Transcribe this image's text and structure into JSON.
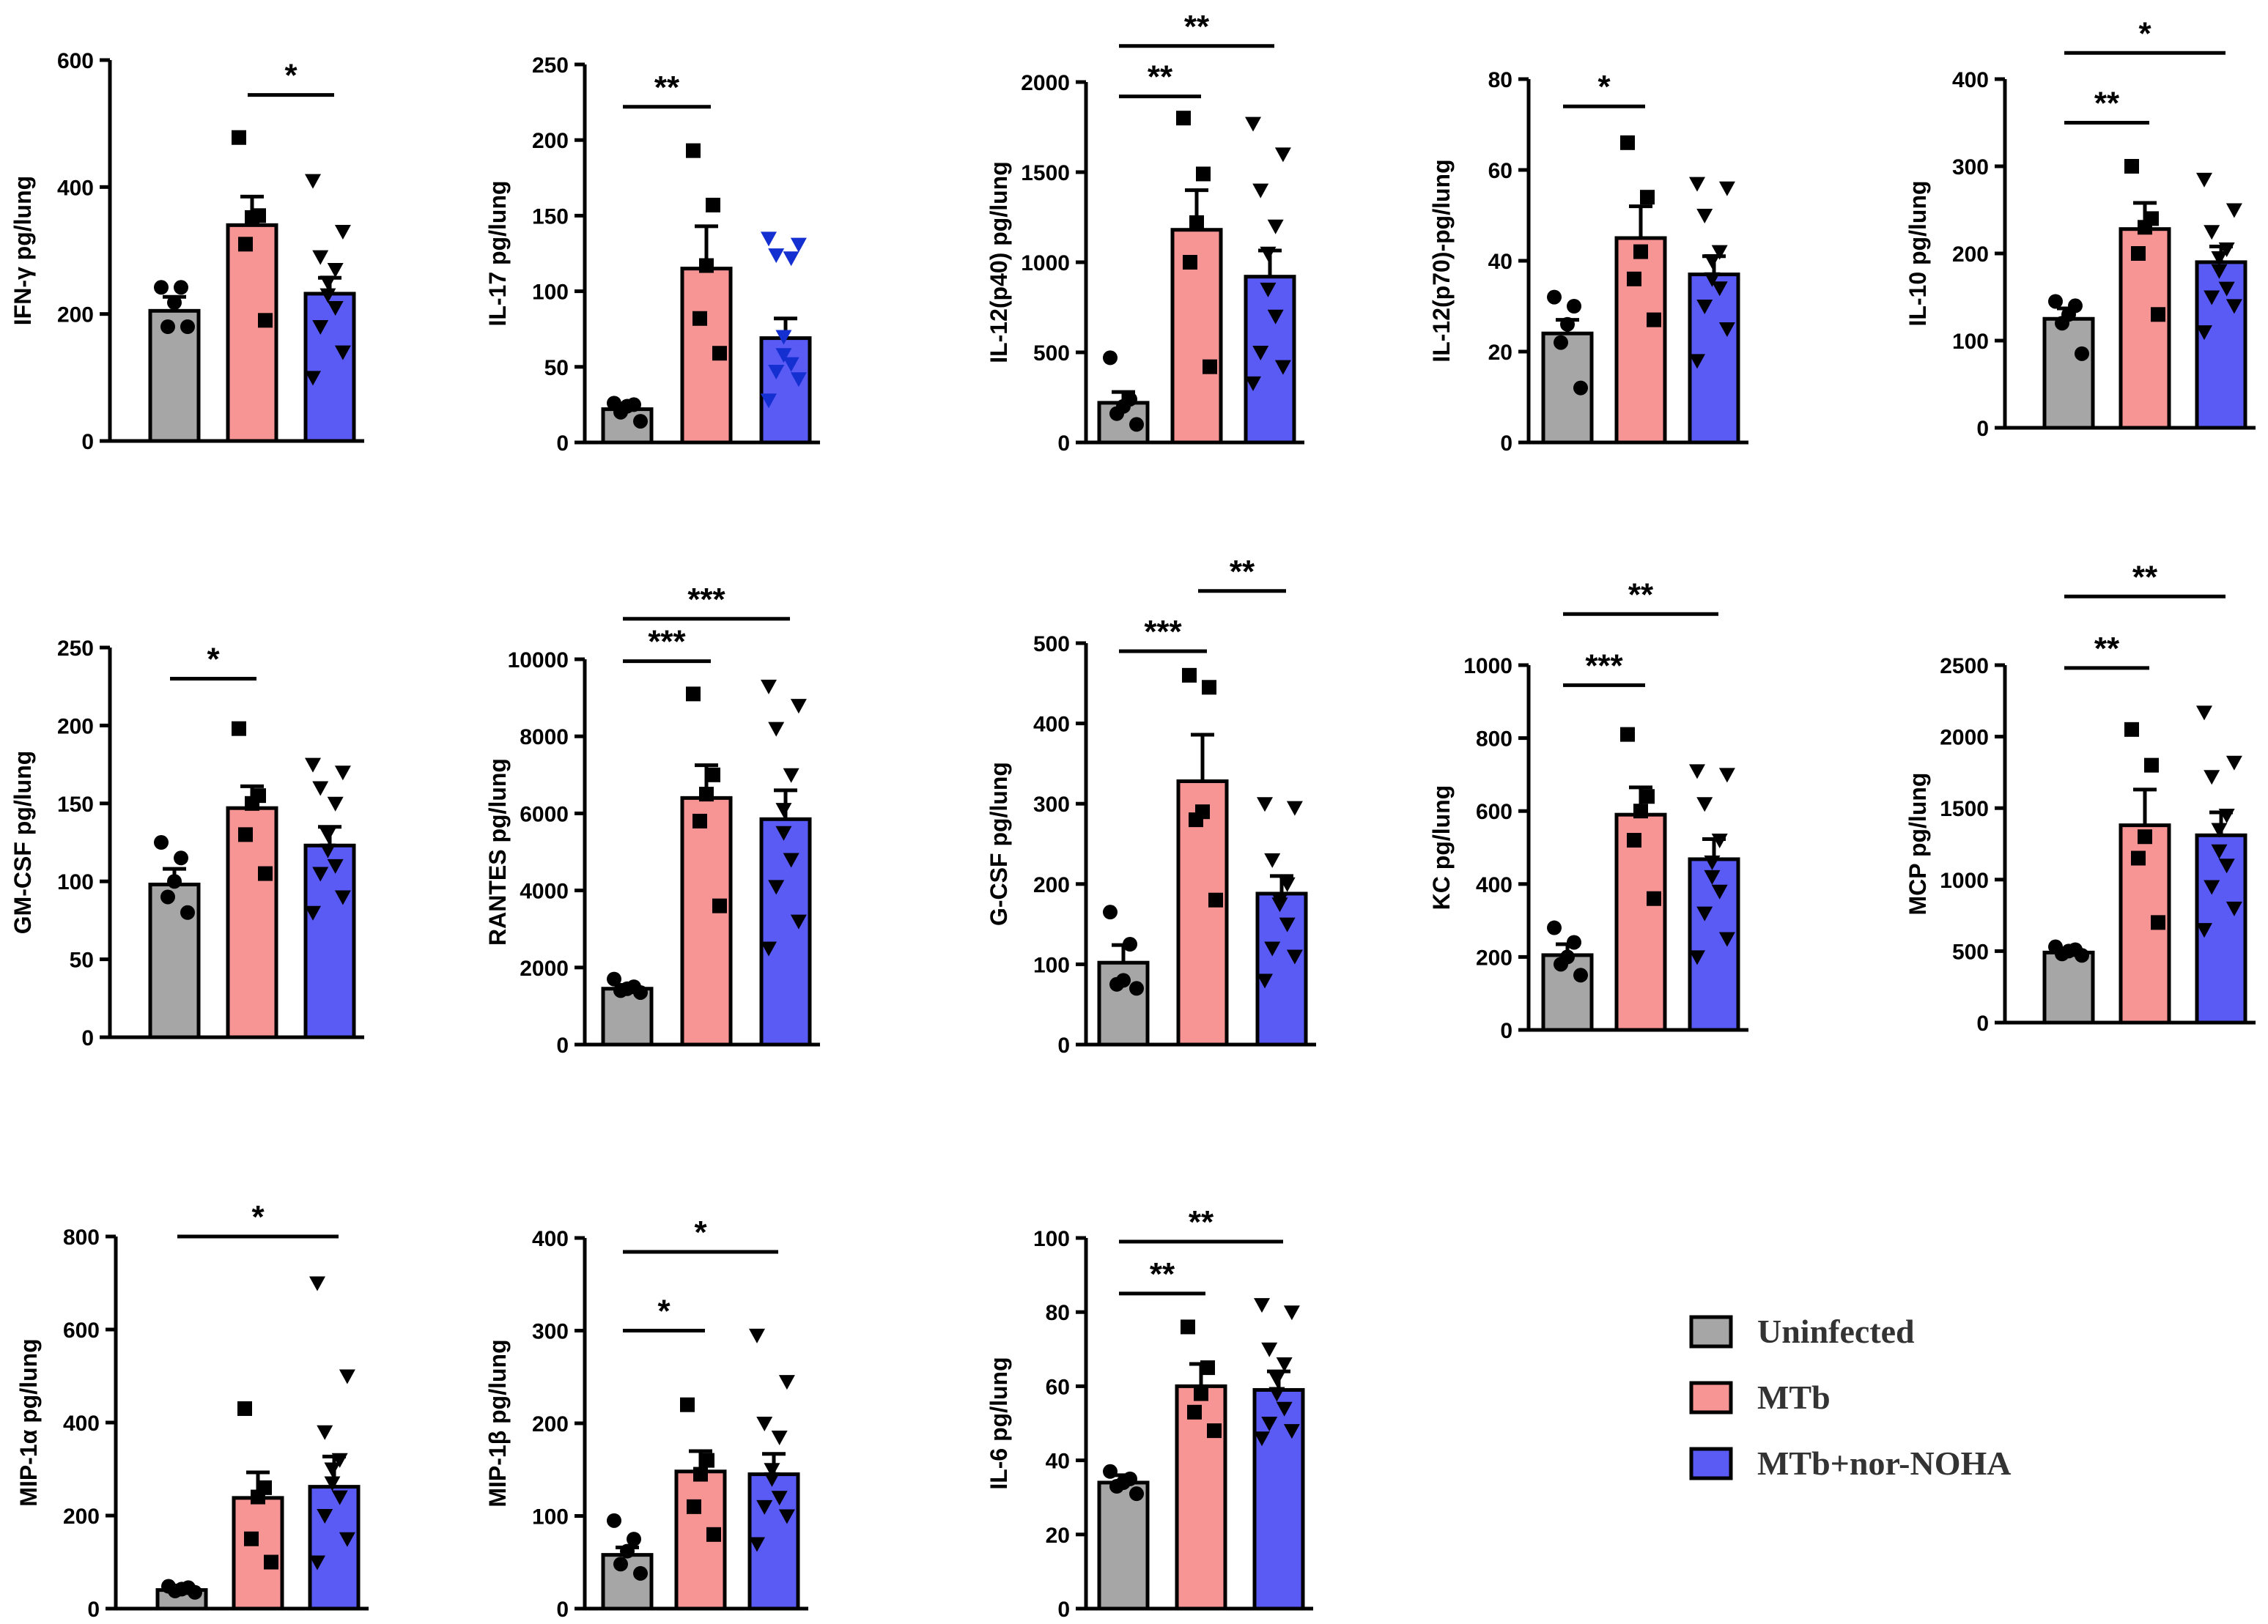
{
  "legend": {
    "items": [
      {
        "label": "Uninfected",
        "color": "#a6a6a6"
      },
      {
        "label": "MTb",
        "color": "#f79494"
      },
      {
        "label": "MTb+nor-NOHA",
        "color": "#5a5af5"
      }
    ]
  },
  "chart_data": [
    {
      "type": "bar",
      "ylabel": "IFN-γ pg/lung",
      "ticks": [
        0,
        200,
        400,
        600
      ],
      "ylim": [
        0,
        600
      ],
      "categories": [
        "Uninfected",
        "MTb",
        "MTb+nor-NOHA"
      ],
      "values": [
        205,
        340,
        232
      ],
      "sem": [
        22,
        45,
        25
      ],
      "points": [
        [
          242,
          242,
          218,
          180,
          180
        ],
        [
          478,
          355,
          352,
          310,
          190
        ],
        [
          410,
          330,
          290,
          270,
          250,
          230,
          210,
          180,
          140,
          100
        ]
      ],
      "sig": [
        {
          "from": 1,
          "to": 2,
          "label": "*",
          "y": 545
        }
      ]
    },
    {
      "type": "bar",
      "ylabel": "IL-17 pg/lung",
      "ticks": [
        0,
        50,
        100,
        150,
        200,
        250
      ],
      "ylim": [
        0,
        250
      ],
      "categories": [
        "Uninfected",
        "MTb",
        "MTb+nor-NOHA"
      ],
      "values": [
        22,
        115,
        69
      ],
      "sem": [
        3,
        28,
        13
      ],
      "points": [
        [
          26,
          25,
          24,
          20,
          14
        ],
        [
          193,
          157,
          117,
          82,
          59
        ],
        [
          135,
          131,
          124,
          122,
          70,
          58,
          52,
          47,
          42,
          28
        ]
      ],
      "sig": [
        {
          "from": 0,
          "to": 1,
          "label": "**",
          "y": 222
        }
      ]
    },
    {
      "type": "bar",
      "ylabel": "IL-12(p40) pg/lung",
      "ticks": [
        0,
        500,
        1000,
        1500,
        2000
      ],
      "ylim": [
        0,
        2000
      ],
      "categories": [
        "Uninfected",
        "MTb",
        "MTb+nor-NOHA"
      ],
      "values": [
        220,
        1180,
        920
      ],
      "sem": [
        60,
        220,
        145
      ],
      "points": [
        [
          470,
          240,
          200,
          160,
          100
        ],
        [
          1800,
          1490,
          1220,
          1000,
          420
        ],
        [
          1770,
          1600,
          1400,
          1200,
          1050,
          850,
          700,
          500,
          420,
          330
        ]
      ],
      "sig": [
        {
          "from": 0,
          "to": 1,
          "label": "**",
          "y": 1920
        },
        {
          "from": 0,
          "to": 2,
          "label": "**",
          "y": 2200
        }
      ]
    },
    {
      "type": "bar",
      "ylabel": "IL-12(p70)-pg/lung",
      "ticks": [
        0,
        20,
        40,
        60,
        80
      ],
      "ylim": [
        0,
        80
      ],
      "categories": [
        "Uninfected",
        "MTb",
        "MTb+nor-NOHA"
      ],
      "values": [
        24,
        45,
        37
      ],
      "sem": [
        3,
        7,
        4
      ],
      "points": [
        [
          32,
          30,
          26,
          22,
          12
        ],
        [
          66,
          54,
          42,
          36,
          27
        ],
        [
          57,
          56,
          50,
          42,
          40,
          36,
          34,
          30,
          25,
          18
        ]
      ],
      "sig": [
        {
          "from": 0,
          "to": 1,
          "label": "*",
          "y": 74
        }
      ]
    },
    {
      "type": "bar",
      "ylabel": "IL-10 pg/lung",
      "ticks": [
        0,
        100,
        200,
        300,
        400
      ],
      "ylim": [
        0,
        400
      ],
      "categories": [
        "Uninfected",
        "MTb",
        "MTb+nor-NOHA"
      ],
      "values": [
        125,
        228,
        190
      ],
      "sem": [
        12,
        30,
        18
      ],
      "points": [
        [
          145,
          140,
          130,
          120,
          85
        ],
        [
          300,
          240,
          230,
          200,
          130
        ],
        [
          285,
          250,
          225,
          205,
          195,
          180,
          160,
          150,
          140,
          110
        ]
      ],
      "sig": [
        {
          "from": 0,
          "to": 1,
          "label": "**",
          "y": 350
        },
        {
          "from": 0,
          "to": 2,
          "label": "*",
          "y": 430
        }
      ]
    },
    {
      "type": "bar",
      "ylabel": "GM-CSF pg/lung",
      "ticks": [
        0,
        50,
        100,
        150,
        200,
        250
      ],
      "ylim": [
        0,
        250
      ],
      "categories": [
        "Uninfected",
        "MTb",
        "MTb+nor-NOHA"
      ],
      "values": [
        98,
        147,
        123
      ],
      "sem": [
        10,
        14,
        12
      ],
      "points": [
        [
          125,
          115,
          100,
          90,
          80
        ],
        [
          198,
          155,
          150,
          130,
          105
        ],
        [
          175,
          170,
          160,
          150,
          130,
          120,
          110,
          105,
          90,
          80
        ]
      ],
      "sig": [
        {
          "from": 0,
          "to": 1,
          "label": "*",
          "y": 230
        }
      ]
    },
    {
      "type": "bar",
      "ylabel": "RANTES pg/lung",
      "ticks": [
        0,
        2000,
        4000,
        6000,
        8000,
        10000
      ],
      "ylim": [
        0,
        10000
      ],
      "categories": [
        "Uninfected",
        "MTb",
        "MTb+nor-NOHA"
      ],
      "values": [
        1450,
        6400,
        5850
      ],
      "sem": [
        100,
        850,
        750
      ],
      "points": [
        [
          1700,
          1500,
          1450,
          1400,
          1350
        ],
        [
          9100,
          7000,
          6500,
          5800,
          3600
        ],
        [
          9300,
          8800,
          8200,
          7000,
          6100,
          5500,
          4800,
          4100,
          3200,
          2500
        ]
      ],
      "sig": [
        {
          "from": 0,
          "to": 1,
          "label": "***",
          "y": 9950
        },
        {
          "from": 0,
          "to": 2,
          "label": "***",
          "y": 11050
        }
      ]
    },
    {
      "type": "bar",
      "ylabel": "G-CSF pg/lung",
      "ticks": [
        0,
        100,
        200,
        300,
        400,
        500
      ],
      "ylim": [
        0,
        500
      ],
      "categories": [
        "Uninfected",
        "MTb",
        "MTb+nor-NOHA"
      ],
      "values": [
        102,
        328,
        188
      ],
      "sem": [
        22,
        58,
        22
      ],
      "points": [
        [
          165,
          125,
          80,
          75,
          70
        ],
        [
          460,
          445,
          290,
          280,
          180
        ],
        [
          300,
          295,
          230,
          200,
          180,
          175,
          150,
          120,
          110,
          80
        ]
      ],
      "sig": [
        {
          "from": 0,
          "to": 1,
          "label": "***",
          "y": 490
        },
        {
          "from": 1,
          "to": 2,
          "label": "**",
          "y": 565
        }
      ]
    },
    {
      "type": "bar",
      "ylabel": "KC pg/lung",
      "ticks": [
        0,
        200,
        400,
        600,
        800,
        1000
      ],
      "ylim": [
        0,
        1000
      ],
      "categories": [
        "Uninfected",
        "MTb",
        "MTb+nor-NOHA"
      ],
      "values": [
        205,
        590,
        468
      ],
      "sem": [
        30,
        75,
        55
      ],
      "points": [
        [
          280,
          240,
          200,
          180,
          150
        ],
        [
          810,
          640,
          600,
          520,
          360
        ],
        [
          710,
          700,
          620,
          520,
          460,
          420,
          380,
          320,
          250,
          200
        ]
      ],
      "sig": [
        {
          "from": 0,
          "to": 1,
          "label": "***",
          "y": 945
        },
        {
          "from": 0,
          "to": 2,
          "label": "**",
          "y": 1140
        }
      ]
    },
    {
      "type": "bar",
      "ylabel": "MCP pg/lung",
      "ticks": [
        0,
        500,
        1000,
        1500,
        2000,
        2500
      ],
      "ylim": [
        0,
        2500
      ],
      "categories": [
        "Uninfected",
        "MTb",
        "MTb+nor-NOHA"
      ],
      "values": [
        490,
        1380,
        1310
      ],
      "sem": [
        20,
        250,
        160
      ],
      "points": [
        [
          530,
          510,
          500,
          480,
          470
        ],
        [
          2050,
          1800,
          1300,
          1150,
          700
        ],
        [
          2170,
          1820,
          1720,
          1450,
          1350,
          1200,
          1100,
          950,
          800,
          650
        ]
      ],
      "sig": [
        {
          "from": 0,
          "to": 1,
          "label": "**",
          "y": 2480
        },
        {
          "from": 0,
          "to": 2,
          "label": "**",
          "y": 2980
        }
      ]
    },
    {
      "type": "bar",
      "ylabel": "MIP-1α pg/lung",
      "ticks": [
        0,
        200,
        400,
        600,
        800
      ],
      "ylim": [
        0,
        800
      ],
      "categories": [
        "Uninfected",
        "MTb",
        "MTb+nor-NOHA"
      ],
      "values": [
        40,
        238,
        262
      ],
      "sem": [
        5,
        55,
        65
      ],
      "points": [
        [
          48,
          45,
          42,
          38,
          35
        ],
        [
          430,
          260,
          240,
          150,
          100
        ],
        [
          700,
          500,
          380,
          320,
          300,
          270,
          240,
          200,
          150,
          100
        ]
      ],
      "sig": [
        {
          "from": 0,
          "to": 2,
          "label": "*",
          "y": 800
        }
      ]
    },
    {
      "type": "bar",
      "ylabel": "MIP-1β pg/lung",
      "ticks": [
        0,
        100,
        200,
        300,
        400
      ],
      "ylim": [
        0,
        400
      ],
      "categories": [
        "Uninfected",
        "MTb",
        "MTb+nor-NOHA"
      ],
      "values": [
        58,
        148,
        145
      ],
      "sem": [
        8,
        22,
        22
      ],
      "points": [
        [
          95,
          75,
          62,
          48,
          38
        ],
        [
          220,
          160,
          145,
          110,
          80
        ],
        [
          295,
          245,
          200,
          185,
          150,
          140,
          120,
          110,
          100,
          70
        ]
      ],
      "sig": [
        {
          "from": 0,
          "to": 1,
          "label": "*",
          "y": 300
        },
        {
          "from": 0,
          "to": 2,
          "label": "*",
          "y": 385
        }
      ]
    },
    {
      "type": "bar",
      "ylabel": "IL-6 pg/lung",
      "ticks": [
        0,
        20,
        40,
        60,
        80,
        100
      ],
      "ylim": [
        0,
        100
      ],
      "categories": [
        "Uninfected",
        "MTb",
        "MTb+nor-NOHA"
      ],
      "values": [
        34,
        60,
        59
      ],
      "sem": [
        2,
        6,
        5
      ],
      "points": [
        [
          37,
          35,
          34,
          33,
          31
        ],
        [
          76,
          65,
          58,
          53,
          48
        ],
        [
          82,
          80,
          70,
          66,
          62,
          58,
          54,
          50,
          48,
          46
        ]
      ],
      "sig": [
        {
          "from": 0,
          "to": 1,
          "label": "**",
          "y": 85
        },
        {
          "from": 0,
          "to": 2,
          "label": "**",
          "y": 99
        }
      ]
    }
  ]
}
